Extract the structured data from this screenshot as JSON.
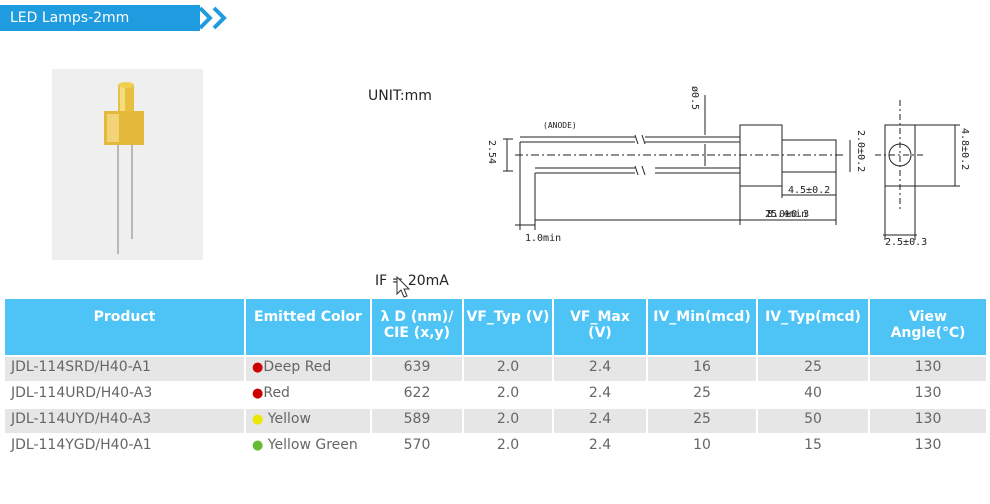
{
  "header": {
    "title": "LED Lamps-2mm"
  },
  "drawing": {
    "unit": "UNIT:mm",
    "anode": "(ANODE)",
    "dim_lead_dia": "ø0.5",
    "dim_pitch": "2.54",
    "dim_body_height": "2.0±0.2",
    "dim_lens_len": "4.5±0.2",
    "dim_lead_len": "25.4min",
    "dim_body_len": "8.0±0.3",
    "dim_min": "1.0min",
    "dim_side_height": "4.8±0.2",
    "dim_side_width": "2.5±0.3"
  },
  "condition": "IF = 20mA",
  "colors": {
    "deep_red": "#cc0000",
    "red": "#cc0000",
    "yellow": "#e8e800",
    "yellow_green": "#66bb33",
    "header_blue": "#4dc4f5",
    "title_blue": "#1f9ce0"
  },
  "table": {
    "headers": [
      "Product",
      "Emitted Color",
      "λ D (nm)/ CIE (x,y)",
      "VF_Typ (V)",
      "VF_Max (V)",
      "IV_Min(mcd)",
      "IV_Typ(mcd)",
      "View Angle(℃)"
    ],
    "rows": [
      {
        "product": "JDL-114SRD/H40-A1",
        "color": "Deep Red",
        "wavelength": "639",
        "vf_typ": "2.0",
        "vf_max": "2.4",
        "iv_min": "16",
        "iv_typ": "25",
        "angle": "130"
      },
      {
        "product": "JDL-114URD/H40-A3",
        "color": "Red",
        "wavelength": "622",
        "vf_typ": "2.0",
        "vf_max": "2.4",
        "iv_min": "25",
        "iv_typ": "40",
        "angle": "130"
      },
      {
        "product": "JDL-114UYD/H40-A3",
        "color": " Yellow",
        "wavelength": "589",
        "vf_typ": "2.0",
        "vf_max": "2.4",
        "iv_min": "25",
        "iv_typ": "50",
        "angle": "130"
      },
      {
        "product": "JDL-114YGD/H40-A1",
        "color": " Yellow Green",
        "wavelength": "570",
        "vf_typ": "2.0",
        "vf_max": "2.4",
        "iv_min": "10",
        "iv_typ": "15",
        "angle": "130"
      }
    ]
  }
}
